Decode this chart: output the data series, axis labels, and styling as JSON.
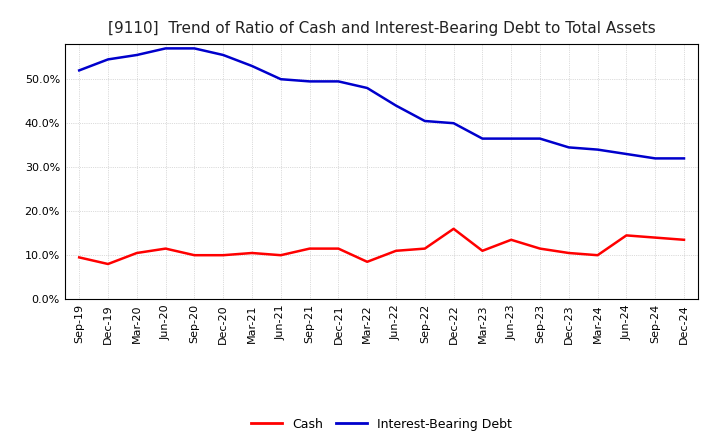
{
  "title": "[9110]  Trend of Ratio of Cash and Interest-Bearing Debt to Total Assets",
  "x_labels": [
    "Sep-19",
    "Dec-19",
    "Mar-20",
    "Jun-20",
    "Sep-20",
    "Dec-20",
    "Mar-21",
    "Jun-21",
    "Sep-21",
    "Dec-21",
    "Mar-22",
    "Jun-22",
    "Sep-22",
    "Dec-22",
    "Mar-23",
    "Jun-23",
    "Sep-23",
    "Dec-23",
    "Mar-24",
    "Jun-24",
    "Sep-24",
    "Dec-24"
  ],
  "cash": [
    9.5,
    8.0,
    10.5,
    11.5,
    10.0,
    10.0,
    10.5,
    10.0,
    11.5,
    11.5,
    8.5,
    11.0,
    11.5,
    16.0,
    11.0,
    13.5,
    11.5,
    10.5,
    10.0,
    14.5,
    14.0,
    13.5
  ],
  "interest_bearing_debt": [
    52.0,
    54.5,
    55.5,
    57.0,
    57.0,
    55.5,
    53.0,
    50.0,
    49.5,
    49.5,
    48.0,
    44.0,
    40.5,
    40.0,
    36.5,
    36.5,
    36.5,
    34.5,
    34.0,
    33.0,
    32.0,
    32.0
  ],
  "cash_color": "#ff0000",
  "debt_color": "#0000cc",
  "background_color": "#ffffff",
  "plot_bg_color": "#ffffff",
  "grid_color": "#bbbbbb",
  "ylim": [
    0,
    58
  ],
  "yticks": [
    0,
    10,
    20,
    30,
    40,
    50
  ],
  "legend_cash": "Cash",
  "legend_debt": "Interest-Bearing Debt",
  "title_fontsize": 11,
  "axis_fontsize": 8,
  "legend_fontsize": 9,
  "line_width": 1.8
}
